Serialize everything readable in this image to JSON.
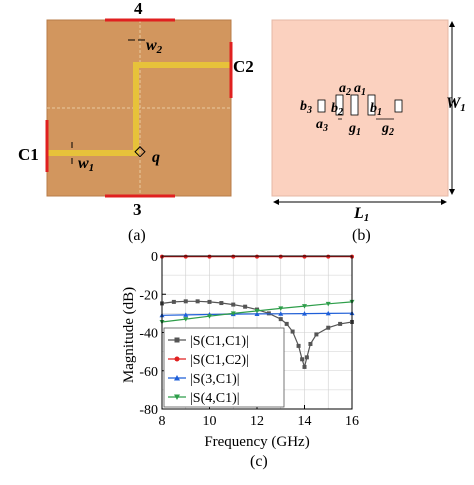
{
  "figure": {
    "panel_a": {
      "caption": "(a)",
      "ports": {
        "top": "4",
        "bottom": "3",
        "left": "C1",
        "right": "C2"
      },
      "dims": {
        "w1_main": "w",
        "w1_sub": "1",
        "w2_main": "w",
        "w2_sub": "2",
        "q": "q"
      },
      "colors": {
        "substrate": "#d2965e",
        "stripline": "#e7c23a",
        "port": "#e02020"
      }
    },
    "panel_b": {
      "caption": "(b)",
      "dims": {
        "W1_main": "W",
        "W1_sub": "1",
        "L1_main": "L",
        "L1_sub": "1",
        "a1_main": "a",
        "a1_sub": "1",
        "a2_main": "a",
        "a2_sub": "2",
        "a3_main": "a",
        "a3_sub": "3",
        "b1_main": "b",
        "b1_sub": "1",
        "b2_main": "b",
        "b2_sub": "2",
        "b3_main": "b",
        "b3_sub": "3",
        "g1_main": "g",
        "g1_sub": "1",
        "g2_main": "g",
        "g2_sub": "2"
      },
      "colors": {
        "ground": "#fbd1bf"
      }
    },
    "panel_c": {
      "caption": "(c)",
      "xlabel": "Frequency (GHz)",
      "ylabel": "Magnitude (dB)",
      "xticks": [
        "8",
        "10",
        "12",
        "14",
        "16"
      ],
      "yticks": [
        "0",
        "-20",
        "-40",
        "-60",
        "-80"
      ]
    }
  },
  "chart_data": {
    "type": "line",
    "xlabel": "Frequency (GHz)",
    "ylabel": "Magnitude (dB)",
    "xlim": [
      8,
      16
    ],
    "ylim": [
      -80,
      0
    ],
    "grid": true,
    "legend_position": "bottom-left",
    "series": [
      {
        "name": "|S(C1,C1)|",
        "color": "#555555",
        "marker": "square",
        "x": [
          8,
          8.5,
          9,
          9.5,
          10,
          10.5,
          11,
          11.5,
          12,
          12.5,
          13,
          13.25,
          13.5,
          13.75,
          13.9,
          14,
          14.1,
          14.25,
          14.5,
          15,
          15.5,
          16
        ],
        "y": [
          -24.8,
          -24,
          -23.7,
          -23.7,
          -24,
          -24.6,
          -25.4,
          -26.5,
          -28,
          -30,
          -33,
          -35.5,
          -39.5,
          -47,
          -54,
          -58,
          -53,
          -46,
          -41,
          -37.5,
          -35.5,
          -34.5
        ]
      },
      {
        "name": "|S(C1,C2)|",
        "color": "#e02020",
        "marker": "circle",
        "x": [
          8,
          9,
          10,
          11,
          12,
          13,
          14,
          15,
          16
        ],
        "y": [
          -0.3,
          -0.3,
          -0.3,
          -0.3,
          -0.3,
          -0.3,
          -0.3,
          -0.3,
          -0.3
        ]
      },
      {
        "name": "|S(3,C1)|",
        "color": "#1f5fd8",
        "marker": "triangle-up",
        "x": [
          8,
          9,
          10,
          11,
          12,
          13,
          14,
          15,
          16
        ],
        "y": [
          -31,
          -30.8,
          -30.6,
          -30.4,
          -30.3,
          -30.2,
          -30.1,
          -30,
          -29.9
        ]
      },
      {
        "name": "|S(4,C1)|",
        "color": "#2e9e4a",
        "marker": "triangle-down",
        "x": [
          8,
          9,
          10,
          11,
          12,
          13,
          14,
          15,
          16
        ],
        "y": [
          -34.5,
          -33,
          -31.5,
          -30,
          -28.7,
          -27.4,
          -26.2,
          -25,
          -24
        ]
      }
    ]
  }
}
